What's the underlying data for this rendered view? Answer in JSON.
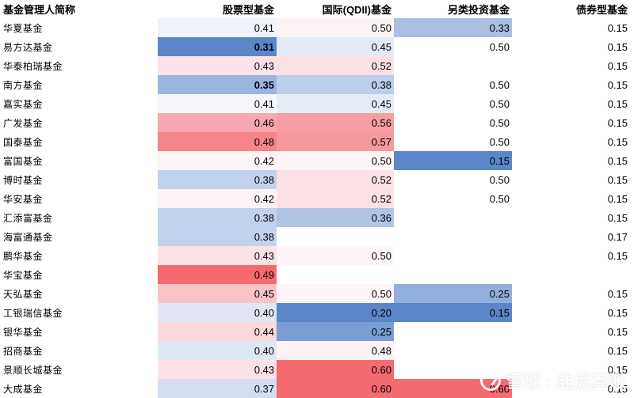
{
  "headers": [
    "基金管理人简称",
    "股票型基金",
    "国际(QDII)基金",
    "另类投资基金",
    "债券型基金"
  ],
  "rows": [
    {
      "name": "华夏基金",
      "values": [
        "0.41",
        "0.50",
        "0.33",
        "0.15"
      ]
    },
    {
      "name": "易方达基金",
      "values": [
        "0.31",
        "0.45",
        "0.50",
        "0.15"
      ]
    },
    {
      "name": "华泰柏瑞基金",
      "values": [
        "0.43",
        "0.52",
        "",
        "0.15"
      ]
    },
    {
      "name": "南方基金",
      "values": [
        "0.35",
        "0.38",
        "0.50",
        "0.15"
      ]
    },
    {
      "name": "嘉实基金",
      "values": [
        "0.41",
        "0.45",
        "0.50",
        "0.15"
      ]
    },
    {
      "name": "广发基金",
      "values": [
        "0.46",
        "0.56",
        "0.50",
        "0.15"
      ]
    },
    {
      "name": "国泰基金",
      "values": [
        "0.48",
        "0.57",
        "0.50",
        "0.15"
      ]
    },
    {
      "name": "富国基金",
      "values": [
        "0.42",
        "0.50",
        "0.15",
        "0.15"
      ]
    },
    {
      "name": "博时基金",
      "values": [
        "0.38",
        "0.52",
        "0.50",
        "0.15"
      ]
    },
    {
      "name": "华安基金",
      "values": [
        "0.42",
        "0.52",
        "0.50",
        "0.15"
      ]
    },
    {
      "name": "汇添富基金",
      "values": [
        "0.38",
        "0.36",
        "",
        "0.15"
      ]
    },
    {
      "name": "海富通基金",
      "values": [
        "0.38",
        "",
        "",
        "0.17"
      ]
    },
    {
      "name": "鹏华基金",
      "values": [
        "0.43",
        "0.50",
        "",
        "0.15"
      ]
    },
    {
      "name": "华宝基金",
      "values": [
        "0.49",
        "",
        "",
        ""
      ]
    },
    {
      "name": "天弘基金",
      "values": [
        "0.45",
        "0.50",
        "0.25",
        "0.15"
      ]
    },
    {
      "name": "工银瑞信基金",
      "values": [
        "0.40",
        "0.20",
        "0.15",
        "0.15"
      ]
    },
    {
      "name": "银华基金",
      "values": [
        "0.44",
        "0.25",
        "",
        "0.15"
      ]
    },
    {
      "name": "招商基金",
      "values": [
        "0.40",
        "0.48",
        "",
        "0.15"
      ]
    },
    {
      "name": "景顺长城基金",
      "values": [
        "0.43",
        "0.60",
        "",
        "0.15"
      ]
    },
    {
      "name": "大成基金",
      "values": [
        "0.37",
        "0.60",
        "0.60",
        "0.15"
      ]
    }
  ],
  "bold_cells": [
    [
      1,
      0
    ],
    [
      3,
      0
    ]
  ],
  "cell_colors": [
    [
      "#eef2fa",
      "#fdf3f5",
      "#a9c0e3",
      "#ffffff"
    ],
    [
      "#5b86c8",
      "#e3eaf5",
      "#ffffff",
      "#ffffff"
    ],
    [
      "#fde1e6",
      "#fbe0e4",
      "#ffffff",
      "#ffffff"
    ],
    [
      "#9bb5df",
      "#bccde9",
      "#ffffff",
      "#ffffff"
    ],
    [
      "#f5f7fc",
      "#e6ecf6",
      "#ffffff",
      "#ffffff"
    ],
    [
      "#f7a7ad",
      "#f79ea4",
      "#ffffff",
      "#ffffff"
    ],
    [
      "#f58589",
      "#f6999f",
      "#ffffff",
      "#ffffff"
    ],
    [
      "#fdf4f6",
      "#fdf5f7",
      "#5b86c8",
      "#ffffff"
    ],
    [
      "#c3d2ec",
      "#fbe1e5",
      "#ffffff",
      "#ffffff"
    ],
    [
      "#fdf4f6",
      "#fbe1e5",
      "#ffffff",
      "#ffffff"
    ],
    [
      "#c3d2ec",
      "#b0c4e6",
      "#ffffff",
      "#ffffff"
    ],
    [
      "#c3d2ec",
      "#ffffff",
      "#ffffff",
      "#ffffff"
    ],
    [
      "#fde1e6",
      "#fdf5f7",
      "#ffffff",
      "#ffffff"
    ],
    [
      "#f56a6e",
      "#ffffff",
      "#ffffff",
      "#ffffff"
    ],
    [
      "#fbc2c8",
      "#fdf5f7",
      "#92aedd",
      "#ffffff"
    ],
    [
      "#dfe7f4",
      "#5b86c8",
      "#5b86c8",
      "#ffffff"
    ],
    [
      "#fbd8dc",
      "#7a9dd3",
      "#ffffff",
      "#ffffff"
    ],
    [
      "#dfe7f4",
      "#fdf3f5",
      "#ffffff",
      "#ffffff"
    ],
    [
      "#fde1e6",
      "#f56a6e",
      "#ffffff",
      "#ffffff"
    ],
    [
      "#d3def0",
      "#f56a6e",
      "#f56a6e",
      "#ffffff"
    ]
  ],
  "watermark": "雪球 : 韭后算账"
}
